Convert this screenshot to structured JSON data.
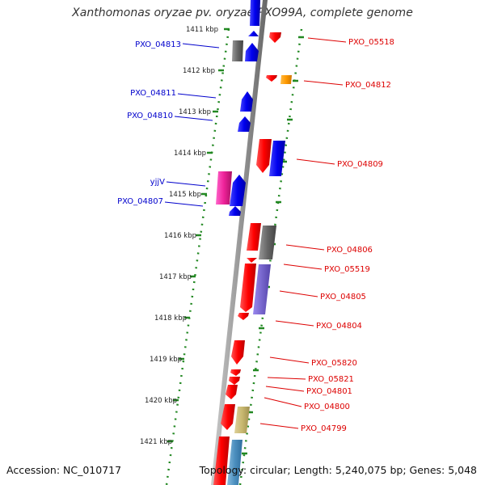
{
  "title": "Xanthomonas oryzae pv. oryzae PXO99A, complete genome",
  "footer": {
    "accession": "Accession: NC_010717",
    "summary": "Topology: circular; Length: 5,240,075 bp; Genes: 5,048"
  },
  "colors": {
    "forward_label": "#0000cc",
    "reverse_label": "#dd0000",
    "tick": "#228822",
    "backbone": "#808080"
  },
  "axis": {
    "unit": "kbp",
    "ticks": [
      "1411 kbp",
      "1412 kbp",
      "1413 kbp",
      "1414 kbp",
      "1415 kbp",
      "1416 kbp",
      "1417 kbp",
      "1418 kbp",
      "1419 kbp",
      "1420 kbp",
      "1421 kbp"
    ]
  },
  "gene_labels": {
    "left": [
      "PXO_04813",
      "PXO_04811",
      "PXO_04810",
      "yjjV",
      "PXO_04807"
    ],
    "right": [
      "PXO_05518",
      "PXO_04812",
      "PXO_04809",
      "PXO_04806",
      "PXO_05519",
      "PXO_04805",
      "PXO_04804",
      "PXO_05820",
      "PXO_05821",
      "PXO_04801",
      "PXO_04800",
      "PXO_04799"
    ]
  }
}
